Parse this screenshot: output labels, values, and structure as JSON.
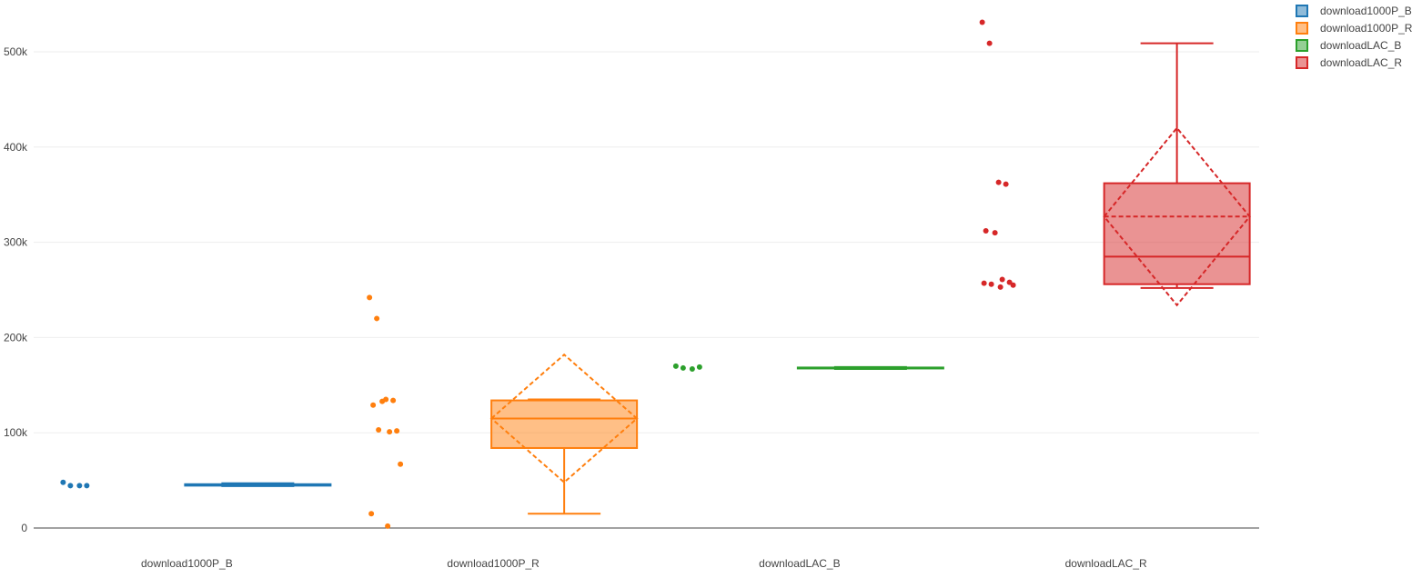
{
  "chart_data": {
    "type": "box",
    "title": "",
    "xlabel": "",
    "ylabel": "",
    "ylim": [
      -2000,
      535000
    ],
    "y_ticks": [
      0,
      100000,
      200000,
      300000,
      400000,
      500000
    ],
    "y_tick_labels": [
      "0",
      "100k",
      "200k",
      "300k",
      "400k",
      "500k"
    ],
    "grid": true,
    "legend_position": "top-right",
    "boxpoints": "all",
    "boxmean": "sd",
    "series": [
      {
        "name": "download1000P_B",
        "category": "download1000P_B",
        "color": "#1f77b4",
        "fill": "rgba(31,119,180,0.5)",
        "min": 44000,
        "q1": 44500,
        "median": 45000,
        "q3": 46000,
        "max": 47000,
        "mean": 45200,
        "sd": 800,
        "points": [
          48000,
          44500,
          44500,
          44500
        ]
      },
      {
        "name": "download1000P_R",
        "category": "download1000P_R",
        "color": "#ff7f0e",
        "fill": "rgba(255,127,14,0.5)",
        "min": 15000,
        "q1": 84000,
        "median": 115000,
        "q3": 134000,
        "max": 135000,
        "mean": 115000,
        "sd": 67000,
        "points": [
          242000,
          220000,
          135000,
          134000,
          129000,
          133000,
          101000,
          102000,
          103000,
          67000,
          15000,
          2000
        ]
      },
      {
        "name": "downloadLAC_B",
        "category": "downloadLAC_B",
        "color": "#2ca02c",
        "fill": "rgba(44,160,44,0.5)",
        "min": 167000,
        "q1": 167500,
        "median": 168000,
        "q3": 168500,
        "max": 169000,
        "mean": 168000,
        "sd": 500,
        "points": [
          170000,
          168000,
          167000,
          169000
        ]
      },
      {
        "name": "downloadLAC_R",
        "category": "downloadLAC_R",
        "color": "#d62728",
        "fill": "rgba(214,39,40,0.5)",
        "min": 252000,
        "q1": 256000,
        "median": 285000,
        "q3": 362000,
        "max": 509000,
        "mean": 327000,
        "sd": 93000,
        "points": [
          531000,
          509000,
          363000,
          361000,
          312000,
          310000,
          261000,
          258000,
          256000,
          255000,
          257000,
          253000
        ]
      }
    ]
  }
}
